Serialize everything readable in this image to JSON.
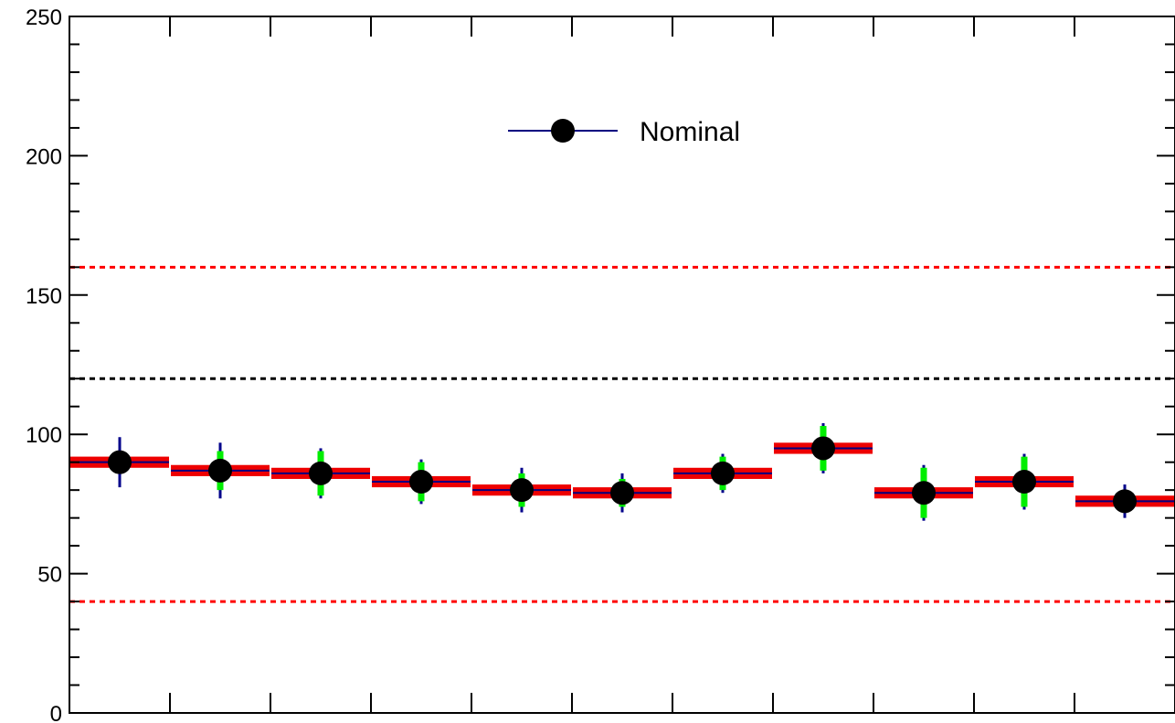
{
  "chart_data": {
    "type": "scatter",
    "title": "",
    "xlabel": "",
    "ylabel": "",
    "ylim": [
      0,
      250
    ],
    "y_ticks": [
      "0",
      "50",
      "100",
      "150",
      "200",
      "250"
    ],
    "n_bins": 11,
    "legend": {
      "label": "Nominal",
      "placement": "top-center"
    },
    "reference_lines": [
      {
        "y": 160,
        "color": "#ff0000",
        "style": "dashed"
      },
      {
        "y": 120,
        "color": "#000000",
        "style": "dashed"
      },
      {
        "y": 40,
        "color": "#ff0000",
        "style": "dashed"
      }
    ],
    "series": [
      {
        "name": "Nominal",
        "values": [
          90,
          87,
          86,
          83,
          80,
          79,
          86,
          95,
          79,
          83,
          76
        ],
        "total_error": [
          9,
          10,
          9,
          8,
          8,
          7,
          7,
          9,
          10,
          10,
          6
        ],
        "stat_error": [
          4,
          7,
          8,
          7,
          6,
          5,
          6,
          8,
          9,
          9,
          3
        ],
        "syst_band": [
          2,
          2,
          2,
          2,
          2,
          2,
          2,
          2,
          2,
          2,
          2
        ]
      }
    ],
    "colors": {
      "marker": "#000000",
      "line": "#000080",
      "total_error": "#00008b",
      "stat_error": "#00ee00",
      "syst_band": "#ee0000"
    }
  }
}
